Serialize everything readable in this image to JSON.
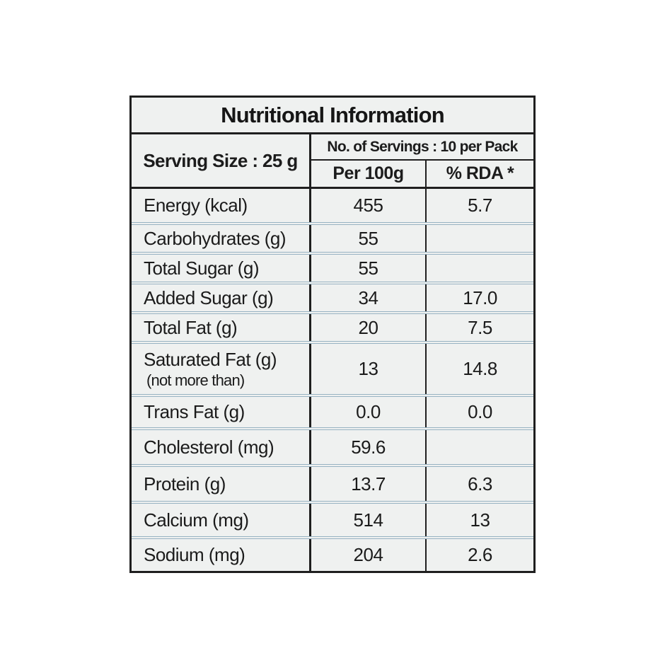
{
  "page": {
    "background_color": "#ffffff",
    "panel_background_color": "#eff1f0",
    "border_color": "#1f1f1f",
    "separator_color": "#97b2c2",
    "text_color": "#1b1b1b"
  },
  "table": {
    "title": "Nutritional Information",
    "serving_size_label": "Serving Size : 25 g",
    "servings_label": "No. of Servings : 10 per Pack",
    "column_headers": {
      "per_100g": "Per 100g",
      "rda": "% RDA *"
    },
    "rows": [
      {
        "label": "Energy (kcal)",
        "per_100g": "455",
        "rda": "5.7"
      },
      {
        "label": "Carbohydrates (g)",
        "per_100g": "55",
        "rda": ""
      },
      {
        "label": "Total Sugar (g)",
        "per_100g": "55",
        "rda": ""
      },
      {
        "label": "Added Sugar (g)",
        "per_100g": "34",
        "rda": "17.0"
      },
      {
        "label": "Total Fat (g)",
        "per_100g": "20",
        "rda": "7.5"
      },
      {
        "label": "Saturated Fat (g)",
        "sublabel": "(not more than)",
        "per_100g": "13",
        "rda": "14.8"
      },
      {
        "label": "Trans Fat (g)",
        "per_100g": "0.0",
        "rda": "0.0"
      },
      {
        "label": "Cholesterol (mg)",
        "per_100g": "59.6",
        "rda": ""
      },
      {
        "label": "Protein (g)",
        "per_100g": "13.7",
        "rda": "6.3"
      },
      {
        "label": "Calcium (mg)",
        "per_100g": "514",
        "rda": "13"
      },
      {
        "label": "Sodium (mg)",
        "per_100g": "204",
        "rda": "2.6"
      }
    ]
  }
}
